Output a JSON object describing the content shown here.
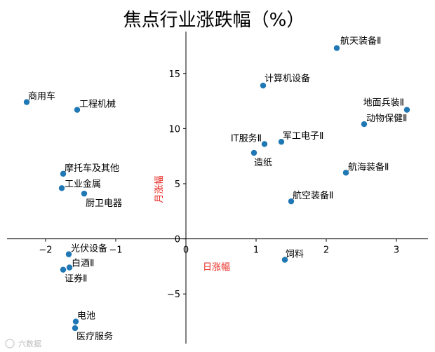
{
  "chart_data": {
    "type": "scatter",
    "title": "焦点行业涨跌幅（%）",
    "xlabel": "日涨幅",
    "ylabel": "月涨幅",
    "xlim": [
      -2.55,
      3.45
    ],
    "ylim": [
      -9.5,
      18.8
    ],
    "xticks": [
      -2,
      -1,
      0,
      1,
      2,
      3
    ],
    "yticks": [
      -5,
      0,
      5,
      10,
      15
    ],
    "grid": false,
    "marker_color": "#1f77b4",
    "points": [
      {
        "label": "航天装备Ⅱ",
        "x": 2.15,
        "y": 17.3
      },
      {
        "label": "计算机设备",
        "x": 1.1,
        "y": 13.9
      },
      {
        "label": "商用车",
        "x": -2.27,
        "y": 12.4
      },
      {
        "label": "工程机械",
        "x": -1.55,
        "y": 11.7
      },
      {
        "label": "地面兵装Ⅱ",
        "x": 3.15,
        "y": 11.7
      },
      {
        "label": "动物保健Ⅱ",
        "x": 2.54,
        "y": 10.4
      },
      {
        "label": "IT服务Ⅱ",
        "x": 1.12,
        "y": 8.6
      },
      {
        "label": "军工电子Ⅱ",
        "x": 1.36,
        "y": 8.8
      },
      {
        "label": "造纸",
        "x": 0.97,
        "y": 7.8
      },
      {
        "label": "航海装备Ⅱ",
        "x": 2.28,
        "y": 6.0
      },
      {
        "label": "摩托车及其他",
        "x": -1.75,
        "y": 5.9
      },
      {
        "label": "工业金属",
        "x": -1.77,
        "y": 4.6
      },
      {
        "label": "厨卫电器",
        "x": -1.45,
        "y": 4.1
      },
      {
        "label": "航空装备Ⅱ",
        "x": 1.5,
        "y": 3.4
      },
      {
        "label": "光伏设备",
        "x": -1.67,
        "y": -1.4
      },
      {
        "label": "饲料",
        "x": 1.41,
        "y": -1.9
      },
      {
        "label": "白酒Ⅱ",
        "x": -1.66,
        "y": -2.6
      },
      {
        "label": "证券Ⅱ",
        "x": -1.75,
        "y": -2.8
      },
      {
        "label": "电池",
        "x": -1.57,
        "y": -7.5
      },
      {
        "label": "医疗服务",
        "x": -1.58,
        "y": -8.1
      }
    ]
  },
  "watermark": "六数据"
}
